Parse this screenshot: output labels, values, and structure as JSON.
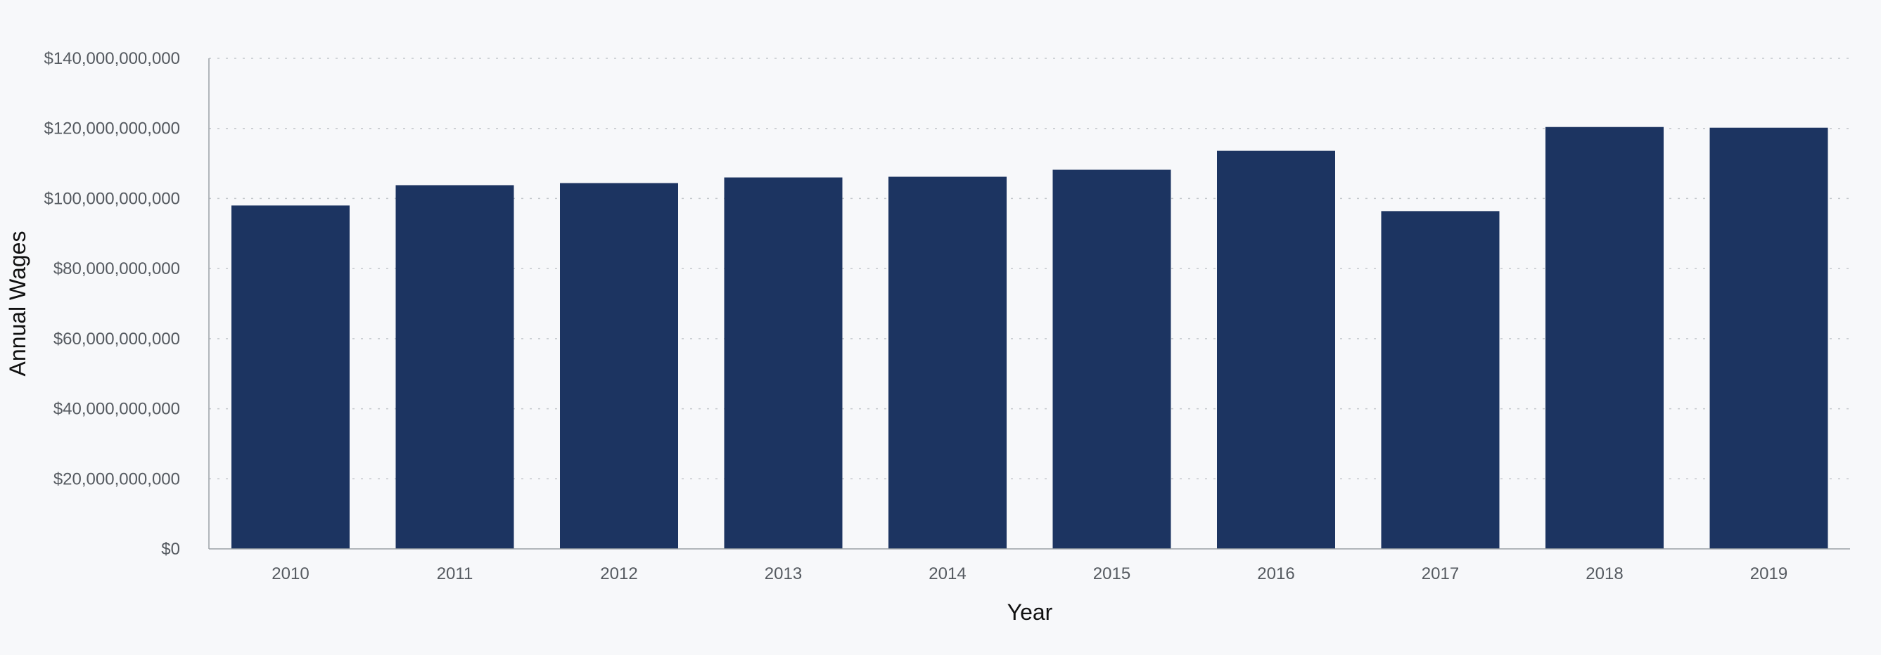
{
  "chart_data": {
    "type": "bar",
    "title": "",
    "xlabel": "Year",
    "ylabel": "Annual Wages",
    "categories": [
      "2010",
      "2011",
      "2012",
      "2013",
      "2014",
      "2015",
      "2016",
      "2017",
      "2018",
      "2019"
    ],
    "values": [
      98000000000,
      103800000000,
      104400000000,
      106000000000,
      106200000000,
      108200000000,
      113600000000,
      96400000000,
      120400000000,
      120200000000
    ],
    "ylim": [
      0,
      140000000000
    ],
    "yticks": [
      0,
      20000000000,
      40000000000,
      60000000000,
      80000000000,
      100000000000,
      120000000000,
      140000000000
    ],
    "ytick_labels": [
      "$0",
      "$20,000,000,000",
      "$40,000,000,000",
      "$60,000,000,000",
      "$80,000,000,000",
      "$100,000,000,000",
      "$120,000,000,000",
      "$140,000,000,000"
    ],
    "grid": true,
    "legend": "none",
    "bar_color": "#1c3461"
  }
}
